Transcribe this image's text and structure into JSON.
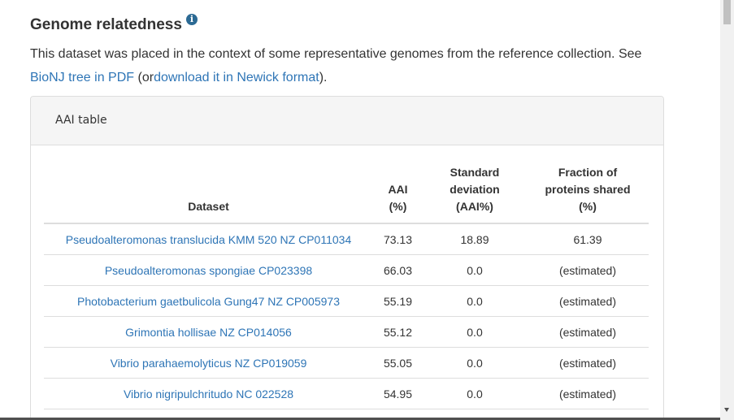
{
  "section": {
    "title": "Genome relatedness",
    "info_icon": "info-icon",
    "intro_text_1": "This dataset was placed in the context of some representative genomes from the reference collection. See",
    "link_pdf": "BioNJ tree in PDF",
    "intro_text_2": "(or",
    "link_newick": "download it in Newick format",
    "intro_text_3": ")."
  },
  "panel": {
    "title": "AAI table"
  },
  "table": {
    "headers": {
      "dataset": "Dataset",
      "aai_1": "AAI",
      "aai_2": "(%)",
      "std_1": "Standard",
      "std_2": "deviation",
      "std_3": "(AAI%)",
      "frac_1": "Fraction of",
      "frac_2": "proteins shared",
      "frac_3": "(%)"
    },
    "rows": [
      {
        "dataset": "Pseudoalteromonas translucida KMM 520 NZ CP011034",
        "aai": "73.13",
        "std": "18.89",
        "fraction": "61.39"
      },
      {
        "dataset": "Pseudoalteromonas spongiae CP023398",
        "aai": "66.03",
        "std": "0.0",
        "fraction": "(estimated)"
      },
      {
        "dataset": "Photobacterium gaetbulicola Gung47 NZ CP005973",
        "aai": "55.19",
        "std": "0.0",
        "fraction": "(estimated)"
      },
      {
        "dataset": "Grimontia hollisae NZ CP014056",
        "aai": "55.12",
        "std": "0.0",
        "fraction": "(estimated)"
      },
      {
        "dataset": "Vibrio parahaemolyticus NZ CP019059",
        "aai": "55.05",
        "std": "0.0",
        "fraction": "(estimated)"
      },
      {
        "dataset": "Vibrio nigripulchritudo NC 022528",
        "aai": "54.95",
        "std": "0.0",
        "fraction": "(estimated)"
      }
    ]
  },
  "colors": {
    "link": "#2e75b6",
    "info_icon": "#2c6a94",
    "panel_header_bg": "#f5f5f5",
    "border": "#dddddd"
  }
}
